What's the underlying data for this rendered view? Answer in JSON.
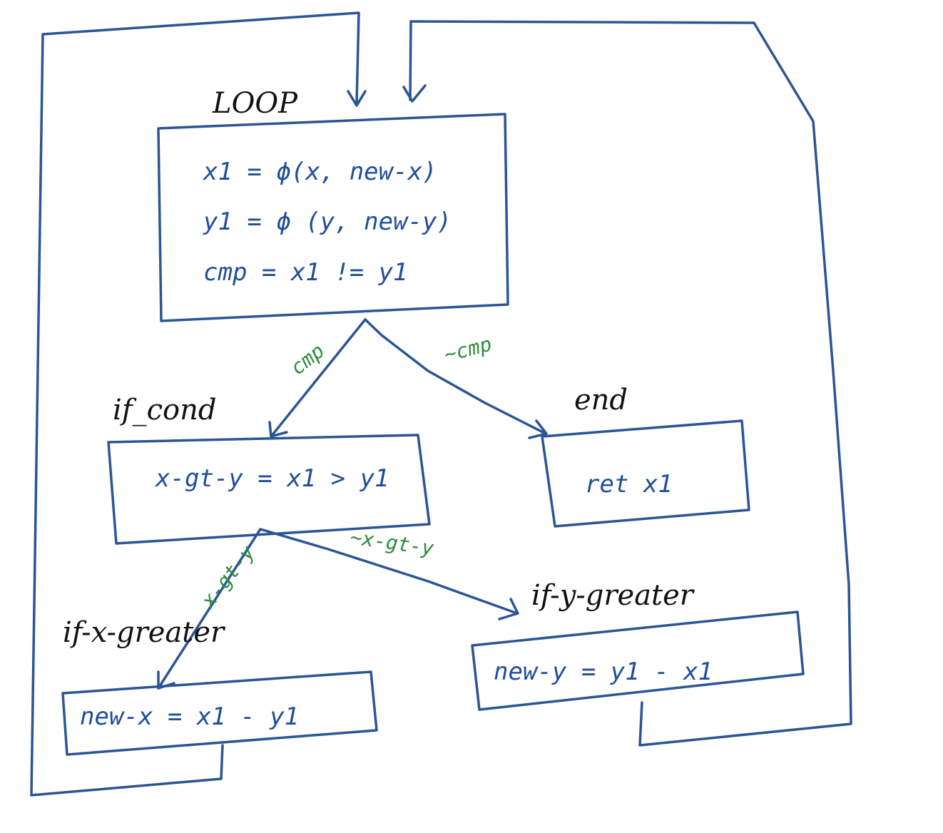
{
  "colors": {
    "box_stroke": "#2b5595",
    "code_text": "#1f4f9a",
    "edge_label": "#2e8b3e",
    "block_label": "#111111"
  },
  "blocks": {
    "loop": {
      "label": "LOOP",
      "lines": [
        "x1  = ϕ(x, new-x)",
        "y1  = ϕ (y, new-y)",
        "cmp  =  x1 != y1"
      ]
    },
    "if_cond": {
      "label": "if_cond",
      "lines": [
        "x-gt-y = x1 > y1"
      ]
    },
    "end": {
      "label": "end",
      "lines": [
        "ret   x1"
      ]
    },
    "if_x_greater": {
      "label": "if-x-greater",
      "lines": [
        "new-x = x1 - y1"
      ]
    },
    "if_y_greater": {
      "label": "if-y-greater",
      "lines": [
        "new-y = y1 - x1"
      ]
    }
  },
  "edges": {
    "loop_to_if_cond": "cmp",
    "loop_to_end": "~cmp",
    "if_cond_to_if_x_greater": "x-gt-y",
    "if_cond_to_if_y_greater": "~x-gt-y"
  }
}
